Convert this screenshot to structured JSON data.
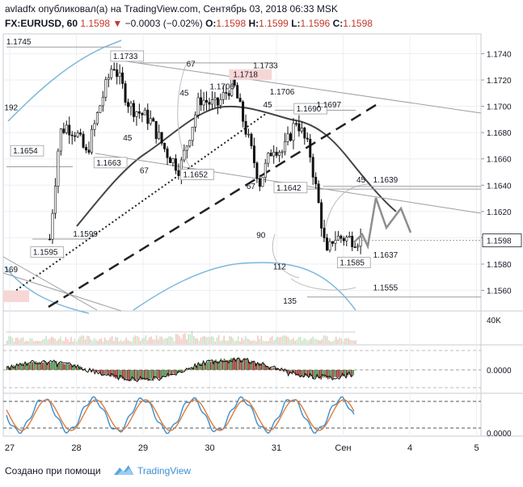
{
  "header": {
    "user": "avladfx",
    "published_text": "опубликовал(а) на TradingView.com, Сентябрь 03, 2018 06:33 MSK",
    "symbol": "FX:EURUSD, 60",
    "last_price": "1.1598",
    "change": "−0.0003 (−0.02%)",
    "ohlc": [
      {
        "label": "O:",
        "value": "1.1598"
      },
      {
        "label": "H:",
        "value": "1.1599"
      },
      {
        "label": "L:",
        "value": "1.1596"
      },
      {
        "label": "C:",
        "value": "1.1598"
      }
    ]
  },
  "footer": {
    "credit": "Создано при помощи",
    "brand": "TradingView"
  },
  "colors": {
    "up": "#2e7d32",
    "down": "#8b1a1a",
    "ma": "#444444",
    "band": "#7db8dc",
    "red_text": "#c0392b",
    "brand": "#3d8dd6",
    "stoch_k": "#3a8fd0",
    "stoch_d": "#e07b39"
  },
  "chart_data": [
    {
      "type": "line",
      "panel": "price",
      "symbol": "FX:EURUSD, 60",
      "ylim": [
        1.1545,
        1.1755
      ],
      "y_ticks": [
        "1.1740",
        "1.1720",
        "1.1700",
        "1.1680",
        "1.1660",
        "1.1640",
        "1.1620",
        "1.1600",
        "1.1580",
        "1.1560"
      ],
      "x_ticks": [
        "27",
        "28",
        "29",
        "30",
        "31",
        "Сен",
        "4",
        "5"
      ],
      "current_price_label": "1.1598",
      "price_path": [
        {
          "t": 27.6,
          "v": 1.1599
        },
        {
          "t": 27.75,
          "v": 1.168
        },
        {
          "t": 27.85,
          "v": 1.1685
        },
        {
          "t": 28.0,
          "v": 1.168
        },
        {
          "t": 28.15,
          "v": 1.1663
        },
        {
          "t": 28.35,
          "v": 1.17
        },
        {
          "t": 28.55,
          "v": 1.1733
        },
        {
          "t": 28.8,
          "v": 1.17
        },
        {
          "t": 29.1,
          "v": 1.169
        },
        {
          "t": 29.35,
          "v": 1.1665
        },
        {
          "t": 29.55,
          "v": 1.1652
        },
        {
          "t": 29.85,
          "v": 1.1706
        },
        {
          "t": 30.1,
          "v": 1.17
        },
        {
          "t": 30.35,
          "v": 1.1718
        },
        {
          "t": 30.55,
          "v": 1.168
        },
        {
          "t": 30.75,
          "v": 1.1642
        },
        {
          "t": 30.95,
          "v": 1.167
        },
        {
          "t": 31.1,
          "v": 1.1665
        },
        {
          "t": 31.3,
          "v": 1.169
        },
        {
          "t": 31.5,
          "v": 1.1665
        },
        {
          "t": 31.65,
          "v": 1.162
        },
        {
          "t": 31.75,
          "v": 1.1585
        },
        {
          "t": 31.85,
          "v": 1.16
        },
        {
          "t": 32.0,
          "v": 1.16
        },
        {
          "t": 32.3,
          "v": 1.1598
        }
      ],
      "price_labels": [
        {
          "text": "1.1745",
          "t": 26.95,
          "v": 1.1747
        },
        {
          "text": "1.1733",
          "t": 28.55,
          "v": 1.1736
        },
        {
          "text": "1.1733",
          "t": 30.65,
          "v": 1.1729
        },
        {
          "text": "1.1718",
          "t": 30.35,
          "v": 1.1722
        },
        {
          "text": "1.1706",
          "t": 30.0,
          "v": 1.1713
        },
        {
          "text": "1.1706",
          "t": 30.9,
          "v": 1.1709
        },
        {
          "text": "1.1690",
          "t": 31.3,
          "v": 1.1696
        },
        {
          "text": "1.1697",
          "t": 31.6,
          "v": 1.1699
        },
        {
          "text": "1.1663",
          "t": 28.3,
          "v": 1.1655
        },
        {
          "text": "1.1654",
          "t": 27.05,
          "v": 1.1664
        },
        {
          "text": "1.1652",
          "t": 29.6,
          "v": 1.1646
        },
        {
          "text": "1.1642",
          "t": 31.0,
          "v": 1.1636
        },
        {
          "text": "1.1639",
          "t": 32.45,
          "v": 1.1642
        },
        {
          "text": "1.1637",
          "t": 32.45,
          "v": 1.1585
        },
        {
          "text": "1.1599",
          "t": 27.95,
          "v": 1.1601
        },
        {
          "text": "1.1595",
          "t": 27.35,
          "v": 1.1587
        },
        {
          "text": "1.1585",
          "t": 31.95,
          "v": 1.1579
        },
        {
          "text": "1.1555",
          "t": 32.45,
          "v": 1.156
        },
        {
          "text": "192",
          "t": 26.92,
          "v": 1.1697
        },
        {
          "text": "169",
          "t": 26.92,
          "v": 1.1574
        }
      ],
      "angle_labels": [
        {
          "text": "67",
          "t": 29.65,
          "v": 1.173
        },
        {
          "text": "45",
          "t": 29.55,
          "v": 1.1708
        },
        {
          "text": "45",
          "t": 28.7,
          "v": 1.1674
        },
        {
          "text": "67",
          "t": 28.95,
          "v": 1.1649
        },
        {
          "text": "45",
          "t": 30.8,
          "v": 1.1699
        },
        {
          "text": "67",
          "t": 30.55,
          "v": 1.1637
        },
        {
          "text": "90",
          "t": 30.7,
          "v": 1.16
        },
        {
          "text": "45",
          "t": 32.2,
          "v": 1.1642
        },
        {
          "text": "112",
          "t": 30.95,
          "v": 1.1576
        },
        {
          "text": "135",
          "t": 31.1,
          "v": 1.155
        }
      ]
    },
    {
      "type": "bar",
      "panel": "volume",
      "y_ticks": [
        "40K"
      ]
    },
    {
      "type": "bar",
      "panel": "oscillator",
      "y_ticks": [
        "0.0000"
      ]
    },
    {
      "type": "line",
      "panel": "stochastic",
      "y_ticks": [
        "0.0000"
      ],
      "series": [
        {
          "values": []
        },
        {
          "values": []
        }
      ]
    }
  ]
}
